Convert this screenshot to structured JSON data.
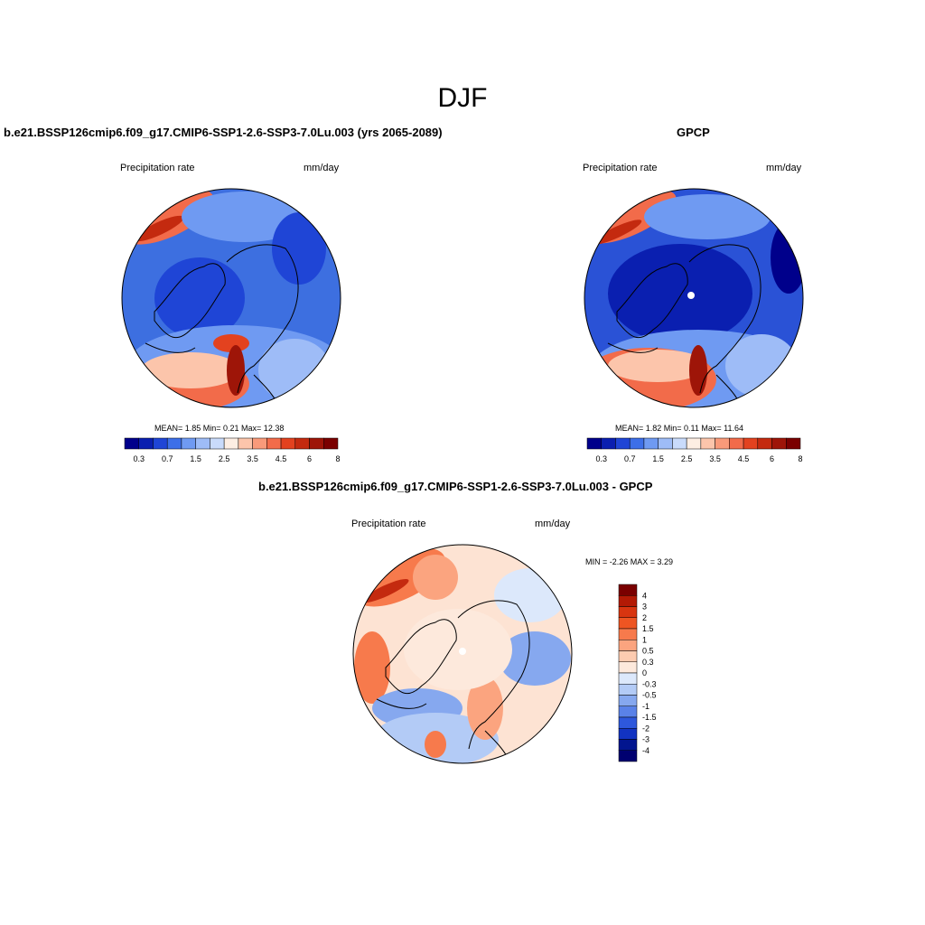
{
  "title": "DJF",
  "panels": [
    {
      "title": "b.e21.BSSP126cmip6.f09_g17.CMIP6-SSP1-2.6-SSP3-7.0Lu.003 (yrs 2065-2089)",
      "variable": "Precipitation rate",
      "units": "mm/day",
      "stats": "MEAN=   1.85  Min=   0.21  Max=  12.38",
      "ocean_color": "#3d6fe0"
    },
    {
      "title": "GPCP",
      "variable": "Precipitation rate",
      "units": "mm/day",
      "stats": "MEAN=   1.82  Min=   0.11  Max=  11.64",
      "ocean_color": "#2a52d6"
    },
    {
      "title": "b.e21.BSSP126cmip6.f09_g17.CMIP6-SSP1-2.6-SSP3-7.0Lu.003 - GPCP",
      "variable": "Precipitation rate",
      "units": "mm/day",
      "stats": "MIN =  -2.26 MAX =   3.29",
      "ocean_color": "#fde3d3"
    }
  ],
  "colorbar_abs": {
    "labels": [
      "0.3",
      "0.7",
      "1.5",
      "2.5",
      "3.5",
      "4.5",
      "6",
      "8"
    ],
    "colors": [
      "#00008b",
      "#0a1fb0",
      "#1f45d6",
      "#3d6fe8",
      "#6f9af2",
      "#9ebcf7",
      "#c9dbfb",
      "#fdeee3",
      "#fcc5ab",
      "#f99a7a",
      "#f26b4a",
      "#e3421f",
      "#c42a0f",
      "#9e1508",
      "#7a0000"
    ]
  },
  "colorbar_diff": {
    "labels": [
      "4",
      "3",
      "2",
      "1.5",
      "1",
      "0.5",
      "0.3",
      "0",
      "-0.3",
      "-0.5",
      "-1",
      "-1.5",
      "-2",
      "-3",
      "-4"
    ],
    "colors": [
      "#7a0000",
      "#b31a05",
      "#d83510",
      "#ee5522",
      "#f77a4c",
      "#fba47f",
      "#fdcbb0",
      "#fde9dc",
      "#dce8fb",
      "#b3cbf6",
      "#86a8ef",
      "#5a82e8",
      "#2e58dc",
      "#1233c1",
      "#02158f",
      "#000070"
    ]
  }
}
